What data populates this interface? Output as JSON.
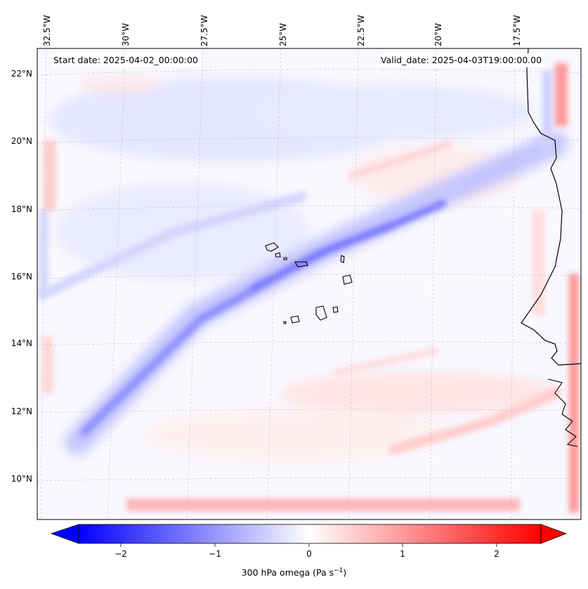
{
  "map": {
    "title_left": "Start date: 2025-04-02_00:00:00",
    "title_right": "Valid_date: 2025-04-03T19:00:00.00",
    "longitude_labels": [
      "32.5°W",
      "30°W",
      "27.5°W",
      "25°W",
      "22.5°W",
      "20°W",
      "17.5°W"
    ],
    "latitude_labels": [
      "22°N",
      "20°N",
      "18°N",
      "16°N",
      "14°N",
      "12°N",
      "10°N"
    ],
    "extent": {
      "lon_min": -32.7,
      "lon_max": -15.4,
      "lat_min": 8.9,
      "lat_max": 22.8
    },
    "colors": {
      "negative": "#0000ff",
      "neutral": "#ffffff",
      "positive": "#ff0000",
      "coast": "#000000",
      "grid": "#b0b0b0"
    }
  },
  "colorbar": {
    "label": "300 hPa omega (Pa s",
    "label_sup": "−1",
    "label_end": ")",
    "ticks": [
      "−2",
      "−1",
      "0",
      "1",
      "2"
    ],
    "range": [
      -2.7,
      2.7
    ]
  }
}
